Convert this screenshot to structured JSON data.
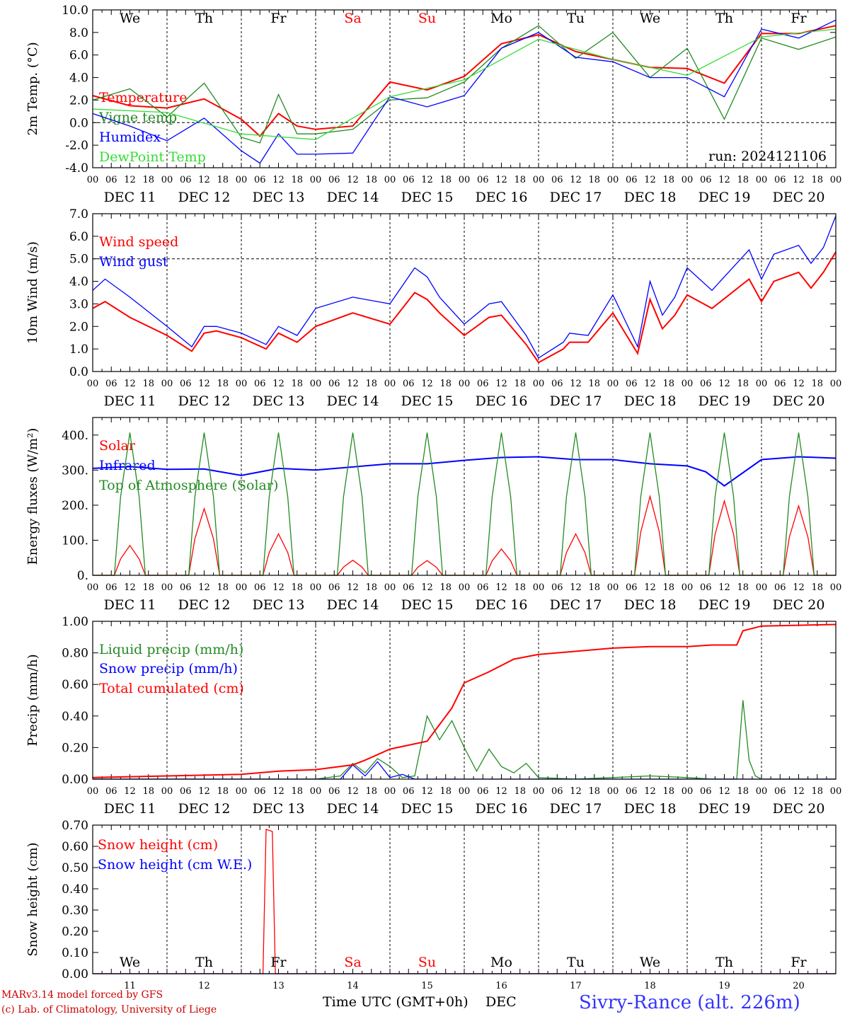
{
  "days": {
    "weekday_labels": [
      "We",
      "Th",
      "Fr",
      "Sa",
      "Su",
      "Mo",
      "Tu",
      "We",
      "Th",
      "Fr"
    ],
    "weekday_colors": [
      "#000000",
      "#000000",
      "#000000",
      "#ff0000",
      "#ff0000",
      "#000000",
      "#000000",
      "#000000",
      "#000000",
      "#000000"
    ],
    "date_labels": [
      "DEC 11",
      "DEC 12",
      "DEC 13",
      "DEC 14",
      "DEC 15",
      "DEC 16",
      "DEC 17",
      "DEC 18",
      "DEC 19",
      "DEC 20"
    ],
    "day_numbers": [
      "11",
      "12",
      "13",
      "14",
      "15",
      "16",
      "17",
      "18",
      "19",
      "20"
    ],
    "hour_ticks": [
      "00",
      "06",
      "12",
      "18"
    ],
    "end_tick": "00"
  },
  "footer": {
    "model_line": "MARv3.14 model forced by GFS",
    "copyright_line": "(c) Lab. of Climatology, University of Liege",
    "axis_title": "Time UTC (GMT+0h)",
    "month": "DEC",
    "station": "Sivry-Rance (alt. 226m)"
  },
  "colors": {
    "red": "#ff0000",
    "green": "#228b22",
    "blue": "#0000ff",
    "lightgreen": "#33dd33",
    "footer_red": "#cc0000",
    "station_blue": "#3333ff"
  },
  "chart_data": [
    {
      "type": "line",
      "ylabel": "2m Temp. (°C)",
      "ylim": [
        -4,
        10
      ],
      "yticks": [
        "-4.0",
        "-2.0",
        "0.0",
        "2.0",
        "4.0",
        "6.0",
        "8.0",
        "10.0"
      ],
      "x_unit": "hours since DEC 11 00 UTC",
      "xlim": [
        0,
        240
      ],
      "run_label": "run: 2024121106",
      "ref_line": 0,
      "series": [
        {
          "name": "Temperature",
          "color": "#ff0000",
          "x": [
            0,
            12,
            24,
            36,
            48,
            54,
            60,
            66,
            72,
            84,
            96,
            108,
            120,
            132,
            144,
            156,
            168,
            180,
            192,
            204,
            216,
            228,
            240
          ],
          "values": [
            2.4,
            1.5,
            1.3,
            2.1,
            0.3,
            -1.2,
            0.8,
            -0.3,
            -0.6,
            -0.3,
            3.6,
            2.9,
            4.1,
            7.0,
            7.8,
            6.3,
            5.6,
            4.9,
            4.8,
            3.5,
            7.9,
            7.9,
            8.6
          ]
        },
        {
          "name": "Vigne temp",
          "color": "#228b22",
          "x": [
            0,
            12,
            24,
            36,
            48,
            54,
            60,
            66,
            72,
            84,
            96,
            108,
            120,
            132,
            144,
            156,
            168,
            180,
            192,
            204,
            216,
            228,
            240
          ],
          "values": [
            2.0,
            3.0,
            0.5,
            3.5,
            -1.3,
            -1.8,
            2.5,
            -1.0,
            -1.0,
            -0.6,
            2.0,
            2.2,
            3.6,
            6.6,
            8.6,
            5.7,
            8.0,
            4.0,
            6.6,
            0.3,
            7.5,
            6.5,
            7.6
          ]
        },
        {
          "name": "Humidex",
          "color": "#0000ff",
          "x": [
            0,
            12,
            24,
            36,
            48,
            54,
            60,
            66,
            72,
            84,
            96,
            108,
            120,
            132,
            144,
            156,
            168,
            180,
            192,
            204,
            216,
            228,
            240
          ],
          "values": [
            0.8,
            -0.3,
            -1.6,
            0.4,
            -2.5,
            -3.6,
            -1.0,
            -2.8,
            -2.8,
            -2.7,
            2.3,
            1.4,
            2.4,
            6.6,
            8.0,
            5.8,
            5.4,
            4.0,
            4.0,
            2.3,
            8.3,
            7.5,
            9.1
          ]
        },
        {
          "name": "DewPoint Temp",
          "color": "#33dd33",
          "x": [
            0,
            24,
            48,
            72,
            96,
            120,
            144,
            168,
            192,
            216,
            240
          ],
          "values": [
            1.2,
            0.9,
            -1.0,
            -1.5,
            2.3,
            3.8,
            7.4,
            5.6,
            4.2,
            7.6,
            8.3
          ]
        }
      ]
    },
    {
      "type": "line",
      "ylabel": "10m Wind (m/s)",
      "ylim": [
        0,
        7
      ],
      "yticks": [
        "0.0",
        "1.0",
        "2.0",
        "3.0",
        "4.0",
        "5.0",
        "6.0",
        "7.0"
      ],
      "xlim": [
        0,
        240
      ],
      "ref_line": 5,
      "series": [
        {
          "name": "Wind speed",
          "color": "#ff0000",
          "x": [
            0,
            4,
            12,
            24,
            32,
            36,
            40,
            48,
            56,
            60,
            66,
            72,
            84,
            96,
            104,
            108,
            112,
            120,
            128,
            132,
            140,
            144,
            152,
            154,
            160,
            168,
            176,
            180,
            184,
            188,
            192,
            200,
            212,
            216,
            220,
            228,
            232,
            236,
            240
          ],
          "values": [
            2.8,
            3.1,
            2.4,
            1.6,
            0.9,
            1.7,
            1.8,
            1.5,
            1.0,
            1.7,
            1.3,
            2.0,
            2.6,
            2.1,
            3.5,
            3.2,
            2.6,
            1.6,
            2.4,
            2.5,
            1.2,
            0.4,
            1.0,
            1.3,
            1.3,
            2.6,
            0.8,
            3.2,
            1.9,
            2.5,
            3.4,
            2.8,
            4.1,
            3.1,
            4.0,
            4.4,
            3.7,
            4.4,
            5.3
          ]
        },
        {
          "name": "Wind gust",
          "color": "#0000ff",
          "x": [
            0,
            4,
            12,
            24,
            32,
            36,
            40,
            48,
            56,
            60,
            66,
            72,
            84,
            96,
            104,
            108,
            112,
            120,
            128,
            132,
            140,
            144,
            152,
            154,
            160,
            168,
            176,
            180,
            184,
            188,
            192,
            200,
            212,
            216,
            220,
            228,
            232,
            236,
            240
          ],
          "values": [
            3.6,
            4.1,
            3.3,
            2.0,
            1.1,
            2.0,
            2.0,
            1.7,
            1.2,
            2.0,
            1.6,
            2.8,
            3.3,
            3.0,
            4.6,
            4.2,
            3.3,
            2.1,
            3.0,
            3.1,
            1.6,
            0.6,
            1.3,
            1.7,
            1.6,
            3.4,
            1.1,
            4.0,
            2.5,
            3.3,
            4.6,
            3.6,
            5.4,
            4.1,
            5.2,
            5.6,
            4.8,
            5.5,
            6.9
          ]
        }
      ]
    },
    {
      "type": "line",
      "ylabel": "Energy fluxes (W/m²)",
      "ylim": [
        0,
        450
      ],
      "yticks": [
        "0.",
        "100.",
        "200.",
        "300.",
        "400."
      ],
      "xlim": [
        0,
        240
      ],
      "series": [
        {
          "name": "Solar",
          "color": "#ff0000",
          "day_peaks": [
            85,
            190,
            118,
            43,
            42,
            75,
            118,
            225,
            212,
            198
          ]
        },
        {
          "name": "Infrared",
          "color": "#0000ff",
          "x": [
            0,
            12,
            24,
            36,
            48,
            60,
            72,
            96,
            108,
            120,
            132,
            144,
            156,
            168,
            180,
            192,
            198,
            204,
            216,
            228,
            240
          ],
          "values": [
            305,
            310,
            302,
            303,
            285,
            305,
            300,
            318,
            318,
            328,
            336,
            338,
            330,
            330,
            318,
            312,
            295,
            255,
            330,
            338,
            334
          ]
        },
        {
          "name": "Top of Atmosphere (Solar)",
          "color": "#228b22",
          "day_peaks": [
            407,
            407,
            407,
            407,
            407,
            407,
            407,
            407,
            407,
            407
          ]
        }
      ]
    },
    {
      "type": "line",
      "ylabel": "Precip (mm/h)",
      "ylim": [
        0,
        1
      ],
      "yticks": [
        "0.00",
        "0.20",
        "0.40",
        "0.60",
        "0.80",
        "1.00"
      ],
      "xlim": [
        0,
        240
      ],
      "series": [
        {
          "name": "Liquid precip (mm/h)",
          "color": "#228b22",
          "x": [
            0,
            72,
            80,
            84,
            88,
            92,
            96,
            100,
            104,
            108,
            112,
            116,
            120,
            124,
            128,
            132,
            136,
            140,
            144,
            156,
            168,
            180,
            192,
            200,
            208,
            210,
            212,
            214,
            216,
            240
          ],
          "values": [
            0,
            0,
            0.02,
            0.1,
            0.04,
            0.13,
            0.08,
            0.01,
            0.02,
            0.4,
            0.25,
            0.37,
            0.2,
            0.05,
            0.19,
            0.08,
            0.04,
            0.1,
            0.01,
            0,
            0.01,
            0.02,
            0.01,
            0,
            0,
            0.5,
            0.12,
            0.02,
            0,
            0
          ]
        },
        {
          "name": "Snow precip (mm/h)",
          "color": "#0000ff",
          "x": [
            0,
            80,
            84,
            88,
            92,
            96,
            100,
            104,
            240
          ],
          "values": [
            0,
            0,
            0.09,
            0.02,
            0.11,
            0.01,
            0.03,
            0,
            0
          ]
        },
        {
          "name": "Total cumulated (cm)",
          "color": "#ff0000",
          "x": [
            0,
            24,
            48,
            60,
            72,
            84,
            88,
            96,
            108,
            116,
            120,
            128,
            136,
            144,
            156,
            168,
            180,
            192,
            200,
            208,
            210,
            216,
            240
          ],
          "values": [
            0.01,
            0.02,
            0.03,
            0.05,
            0.06,
            0.09,
            0.12,
            0.19,
            0.24,
            0.45,
            0.61,
            0.68,
            0.76,
            0.79,
            0.81,
            0.83,
            0.84,
            0.84,
            0.85,
            0.85,
            0.94,
            0.97,
            0.98
          ]
        }
      ]
    },
    {
      "type": "line",
      "ylabel": "Snow height (cm)",
      "ylim": [
        0,
        0.7
      ],
      "yticks": [
        "0.00",
        "0.10",
        "0.20",
        "0.30",
        "0.40",
        "0.50",
        "0.60",
        "0.70"
      ],
      "xlim": [
        0,
        240
      ],
      "series": [
        {
          "name": "Snow height (cm)",
          "color": "#ff0000",
          "x": [
            0,
            55,
            56,
            58,
            59,
            240
          ],
          "values": [
            0,
            0,
            0.68,
            0.67,
            0,
            0
          ]
        },
        {
          "name": "Snow height (cm W.E.)",
          "color": "#0000ff",
          "x": [
            0,
            240
          ],
          "values": [
            0,
            0
          ]
        }
      ]
    }
  ]
}
